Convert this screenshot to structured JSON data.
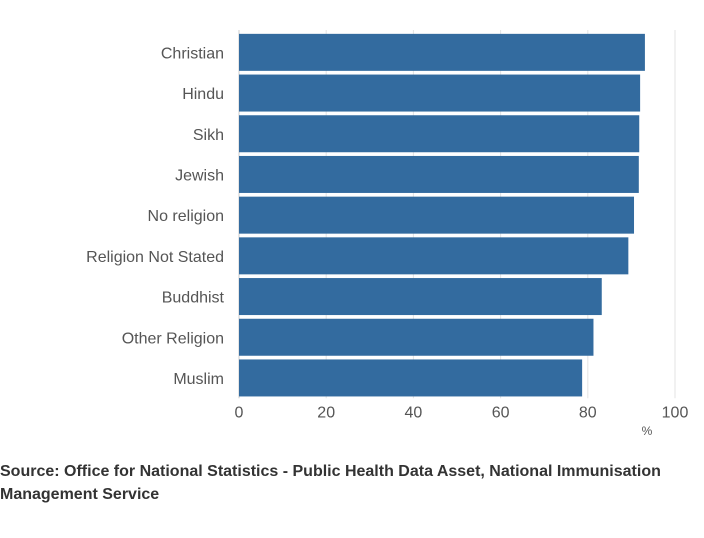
{
  "chart_data": {
    "type": "bar",
    "orientation": "horizontal",
    "categories": [
      "Christian",
      "Hindu",
      "Sikh",
      "Jewish",
      "No religion",
      "Religion Not Stated",
      "Buddhist",
      "Other Religion",
      "Muslim"
    ],
    "values": [
      93.1,
      92.0,
      91.8,
      91.7,
      90.6,
      89.3,
      83.2,
      81.3,
      78.7
    ],
    "xlim": [
      0,
      100
    ],
    "xticks": [
      0,
      20,
      40,
      60,
      80,
      100
    ],
    "x_unit": "%",
    "grid": true,
    "bar_color": "#336b9f"
  },
  "source": "Source: Office for National Statistics - Public Health Data Asset, National Immunisation Management Service"
}
